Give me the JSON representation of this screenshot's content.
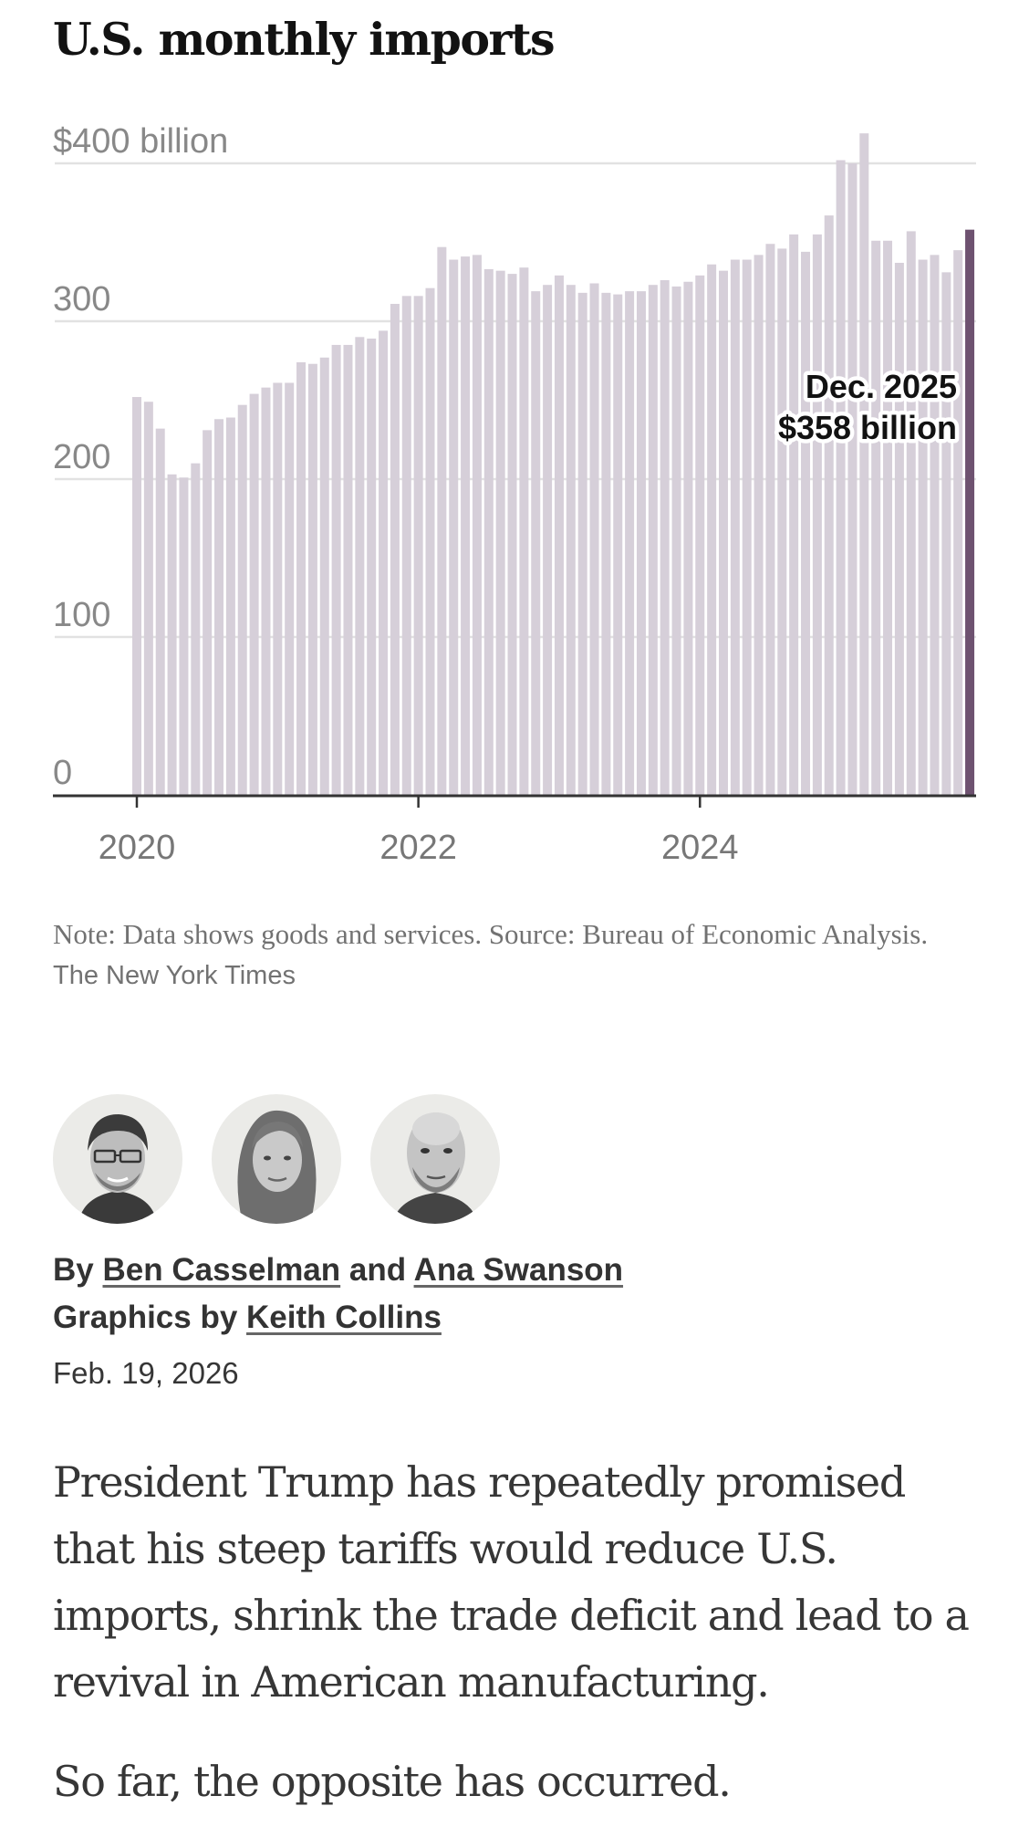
{
  "article": {
    "chart_title": "U.S. monthly imports",
    "note": {
      "text": "Note: Data shows goods and services.  Source: Bureau of Economic Analysis.",
      "credit": "The New York Times"
    },
    "byline": {
      "prefix": "By",
      "author1": "Ben Casselman",
      "joiner": "and",
      "author2": "Ana Swanson",
      "graphics_prefix": "Graphics by",
      "graphics_author": "Keith Collins"
    },
    "avatars": [
      {
        "name": "Ben Casselman",
        "icon": "person-with-glasses-avatar"
      },
      {
        "name": "Ana Swanson",
        "icon": "person-long-hair-avatar"
      },
      {
        "name": "Keith Collins",
        "icon": "person-bald-avatar"
      }
    ],
    "date": "Feb. 19, 2026",
    "paragraphs": [
      "President Trump has repeatedly promised that his steep tariffs would reduce U.S. imports, shrink the trade deficit and lead to a revival in American manufacturing.",
      "So far, the opposite has occurred."
    ]
  },
  "colors": {
    "bar": "#d6cfd9",
    "highlight_bar": "#6e5270",
    "grid": "#e2e2e2",
    "axis": "#333333"
  },
  "chart_data": {
    "type": "bar",
    "title": "U.S. monthly imports",
    "xlabel": "",
    "ylabel": "",
    "units": "billions of dollars",
    "ylim": [
      0,
      400
    ],
    "grid": true,
    "yticks": [
      {
        "value": 0,
        "label": "0"
      },
      {
        "value": 100,
        "label": "100"
      },
      {
        "value": 200,
        "label": "200"
      },
      {
        "value": 300,
        "label": "300"
      },
      {
        "value": 400,
        "label": "$400 billion"
      }
    ],
    "xticks": [
      {
        "index": 0,
        "label": "2020"
      },
      {
        "index": 24,
        "label": "2022"
      },
      {
        "index": 48,
        "label": "2024"
      }
    ],
    "start_month": "Jan. 2020",
    "end_month": "Dec. 2025",
    "values": [
      252,
      249,
      232,
      203,
      201,
      210,
      231,
      238,
      239,
      247,
      254,
      258,
      261,
      261,
      274,
      273,
      277,
      285,
      285,
      290,
      289,
      294,
      311,
      316,
      316,
      321,
      347,
      339,
      341,
      342,
      333,
      332,
      330,
      334,
      319,
      323,
      329,
      323,
      318,
      324,
      318,
      317,
      319,
      319,
      323,
      326,
      322,
      325,
      329,
      336,
      332,
      339,
      339,
      342,
      349,
      346,
      355,
      344,
      355,
      367,
      402,
      400,
      419,
      351,
      351,
      337,
      357,
      339,
      342,
      331,
      345,
      358
    ],
    "highlight_index": 71,
    "annotation": {
      "line1": "Dec. 2025",
      "line2": "$358 billion"
    }
  }
}
